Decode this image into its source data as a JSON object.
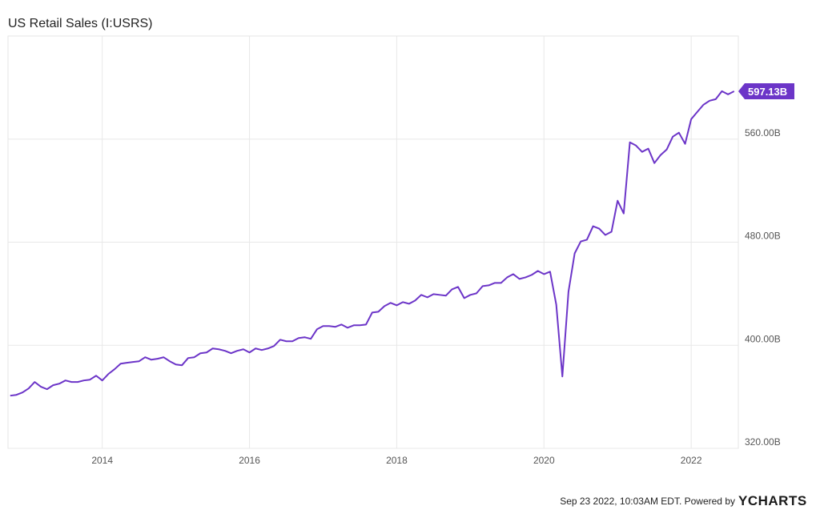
{
  "chart_data": {
    "type": "line",
    "title": "US Retail Sales (I:USRS)",
    "x": [
      2012.75,
      2012.833,
      2012.917,
      2013,
      2013.083,
      2013.167,
      2013.25,
      2013.333,
      2013.417,
      2013.5,
      2013.583,
      2013.667,
      2013.75,
      2013.833,
      2013.917,
      2014,
      2014.083,
      2014.167,
      2014.25,
      2014.333,
      2014.417,
      2014.5,
      2014.583,
      2014.667,
      2014.75,
      2014.833,
      2014.917,
      2015,
      2015.083,
      2015.167,
      2015.25,
      2015.333,
      2015.417,
      2015.5,
      2015.583,
      2015.667,
      2015.75,
      2015.833,
      2015.917,
      2016,
      2016.083,
      2016.167,
      2016.25,
      2016.333,
      2016.417,
      2016.5,
      2016.583,
      2016.667,
      2016.75,
      2016.833,
      2016.917,
      2017,
      2017.083,
      2017.167,
      2017.25,
      2017.333,
      2017.417,
      2017.5,
      2017.583,
      2017.667,
      2017.75,
      2017.833,
      2017.917,
      2018,
      2018.083,
      2018.167,
      2018.25,
      2018.333,
      2018.417,
      2018.5,
      2018.583,
      2018.667,
      2018.75,
      2018.833,
      2018.917,
      2019,
      2019.083,
      2019.167,
      2019.25,
      2019.333,
      2019.417,
      2019.5,
      2019.583,
      2019.667,
      2019.75,
      2019.833,
      2019.917,
      2020,
      2020.083,
      2020.167,
      2020.25,
      2020.333,
      2020.417,
      2020.5,
      2020.583,
      2020.667,
      2020.75,
      2020.833,
      2020.917,
      2021,
      2021.083,
      2021.167,
      2021.25,
      2021.333,
      2021.417,
      2021.5,
      2021.583,
      2021.667,
      2021.75,
      2021.833,
      2021.917,
      2022,
      2022.083,
      2022.167,
      2022.25,
      2022.333,
      2022.417,
      2022.5,
      2022.583
    ],
    "series": [
      {
        "name": "US Retail Sales",
        "color": "#6c35c8",
        "values": [
          360.9,
          361.5,
          363.4,
          366.5,
          371.5,
          367.8,
          365.9,
          369,
          370.2,
          372.7,
          371.5,
          371.5,
          372.7,
          373.3,
          376.4,
          372.7,
          377.7,
          381.4,
          385.7,
          386.4,
          387,
          387.6,
          390.7,
          388.8,
          389.5,
          390.7,
          387.6,
          385.1,
          384.5,
          390.1,
          390.7,
          393.8,
          394.4,
          397.5,
          396.9,
          395.7,
          393.8,
          395.7,
          396.9,
          394.4,
          397.5,
          396.3,
          397.5,
          399.4,
          404.3,
          403.1,
          403.1,
          405.6,
          406.2,
          405,
          412.4,
          414.9,
          414.9,
          414.3,
          416.1,
          413.6,
          415.5,
          415.5,
          416.1,
          425.4,
          426,
          430.4,
          432.9,
          431,
          433.5,
          432.2,
          434.7,
          439.1,
          437.2,
          439.7,
          439.1,
          438.5,
          443.4,
          445.3,
          436.6,
          439.1,
          440.3,
          445.9,
          446.5,
          448.4,
          448.4,
          452.7,
          455.2,
          451.5,
          452.7,
          454.6,
          457.7,
          455.2,
          457.1,
          431.6,
          375.8,
          441.6,
          471.3,
          480.6,
          481.9,
          492.4,
          490.5,
          485.6,
          488.1,
          512.2,
          502.3,
          557.5,
          555,
          550.1,
          552.6,
          541.4,
          547.6,
          551.9,
          561.9,
          565,
          556.3,
          575.5,
          581.1,
          586.7,
          589.8,
          591,
          597.2,
          594.7,
          597.13
        ]
      }
    ],
    "current_value": {
      "value": 597.13,
      "label": "597.13B"
    },
    "xlim": [
      2012.72,
      2022.64
    ],
    "xticks": [
      2014,
      2016,
      2018,
      2020,
      2022
    ],
    "ylim": [
      320,
      640
    ],
    "yticks": [
      {
        "value": 320,
        "label": "320.00B"
      },
      {
        "value": 400,
        "label": "400.00B"
      },
      {
        "value": 480,
        "label": "480.00B"
      },
      {
        "value": 560,
        "label": "560.00B"
      }
    ],
    "grid": true,
    "footer": "Sep 23 2022, 10:03AM EDT. Powered by",
    "brand": "YCHARTS"
  }
}
